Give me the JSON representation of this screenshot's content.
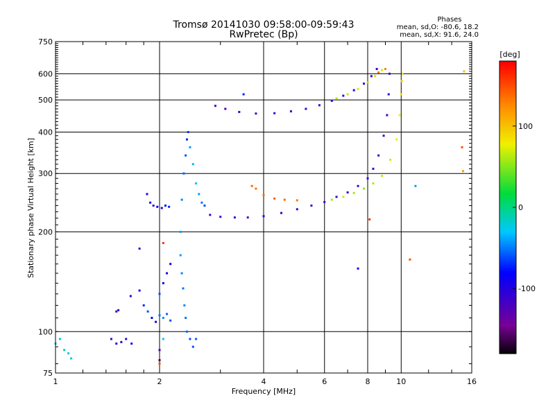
{
  "chart_data": {
    "type": "scatter",
    "title": "Tromsø 20141030 09:58:00-09:59:43",
    "subtitle": "RwPretec (Bp)",
    "xlabel": "Frequency [MHz]",
    "ylabel": "Stationary phase Virtual Height [km]",
    "x_scale": "log",
    "y_scale": "log",
    "xlim": [
      1,
      16
    ],
    "ylim": [
      75,
      750
    ],
    "x_ticks": [
      1,
      2,
      4,
      6,
      8,
      10,
      16
    ],
    "y_ticks": [
      75,
      100,
      200,
      300,
      400,
      500,
      600,
      750
    ],
    "x_tick_labels": [
      "1",
      "2",
      "4",
      "6",
      "8",
      "10",
      "16"
    ],
    "y_tick_labels": [
      "75",
      "100",
      "200",
      "300",
      "400",
      "500",
      "600",
      "750"
    ],
    "grid": true,
    "annotation": {
      "heading": "Phases",
      "line1": "mean, sd,O: -80.6, 18.2",
      "line2": "mean, sd,X:  91.6, 24.0"
    },
    "colorbar": {
      "label": "[deg]",
      "range": [
        -180,
        180
      ],
      "ticks": [
        100,
        0,
        -100
      ],
      "tick_labels": [
        "100",
        "0",
        "-100"
      ]
    },
    "series": [
      {
        "comment_free": true,
        "points": [
          [
            1.0,
            92,
            -20
          ],
          [
            1.03,
            95,
            -15
          ],
          [
            1.06,
            88,
            -10
          ],
          [
            1.09,
            86,
            -25
          ],
          [
            1.11,
            83,
            -20
          ],
          [
            1.45,
            95,
            -110
          ],
          [
            1.5,
            92,
            -105
          ],
          [
            1.55,
            93,
            -100
          ],
          [
            1.6,
            95,
            -105
          ],
          [
            1.66,
            92,
            -95
          ],
          [
            1.5,
            115,
            -110
          ],
          [
            1.52,
            116,
            -105
          ],
          [
            1.65,
            128,
            -100
          ],
          [
            1.75,
            133,
            -95
          ],
          [
            1.8,
            120,
            -70
          ],
          [
            1.85,
            115,
            -60
          ],
          [
            1.9,
            110,
            -80
          ],
          [
            1.95,
            107,
            -90
          ],
          [
            2.0,
            112,
            -50
          ],
          [
            2.05,
            110,
            -45
          ],
          [
            2.1,
            113,
            -55
          ],
          [
            2.15,
            108,
            -60
          ],
          [
            2.0,
            130,
            -60
          ],
          [
            2.05,
            140,
            -80
          ],
          [
            2.1,
            150,
            -90
          ],
          [
            2.15,
            160,
            -85
          ],
          [
            2.0,
            82,
            -160
          ],
          [
            2.0,
            80,
            150
          ],
          [
            2.05,
            95,
            -20
          ],
          [
            1.84,
            260,
            -95
          ],
          [
            1.88,
            245,
            -90
          ],
          [
            1.92,
            240,
            -100
          ],
          [
            1.97,
            238,
            -85
          ],
          [
            2.03,
            236,
            -90
          ],
          [
            2.08,
            240,
            -80
          ],
          [
            2.13,
            238,
            -70
          ],
          [
            2.3,
            200,
            -40
          ],
          [
            2.32,
            250,
            -45
          ],
          [
            2.35,
            300,
            -55
          ],
          [
            2.38,
            340,
            -60
          ],
          [
            2.4,
            380,
            -70
          ],
          [
            2.42,
            400,
            -65
          ],
          [
            2.45,
            360,
            -40
          ],
          [
            2.5,
            320,
            -35
          ],
          [
            2.55,
            280,
            -30
          ],
          [
            2.6,
            260,
            -40
          ],
          [
            2.65,
            245,
            -50
          ],
          [
            2.7,
            240,
            -60
          ],
          [
            2.3,
            170,
            -40
          ],
          [
            2.32,
            150,
            -45
          ],
          [
            2.34,
            135,
            -50
          ],
          [
            2.36,
            120,
            -45
          ],
          [
            2.38,
            110,
            -50
          ],
          [
            2.4,
            100,
            -55
          ],
          [
            2.45,
            95,
            -60
          ],
          [
            2.5,
            90,
            -60
          ],
          [
            2.8,
            225,
            -110
          ],
          [
            3.0,
            222,
            -115
          ],
          [
            3.3,
            221,
            -110
          ],
          [
            3.6,
            221,
            -115
          ],
          [
            4.0,
            223,
            -110
          ],
          [
            4.5,
            228,
            -115
          ],
          [
            5.0,
            234,
            -115
          ],
          [
            5.5,
            240,
            -110
          ],
          [
            6.0,
            246,
            -115
          ],
          [
            6.5,
            255,
            -110
          ],
          [
            7.0,
            263,
            -105
          ],
          [
            7.5,
            275,
            -110
          ],
          [
            8.0,
            290,
            -105
          ],
          [
            8.3,
            310,
            -110
          ],
          [
            8.6,
            340,
            -115
          ],
          [
            8.9,
            390,
            -110
          ],
          [
            9.1,
            450,
            -115
          ],
          [
            9.2,
            520,
            -110
          ],
          [
            9.25,
            600,
            -105
          ],
          [
            3.7,
            275,
            140
          ],
          [
            3.8,
            270,
            135
          ],
          [
            4.0,
            258,
            140
          ],
          [
            4.3,
            252,
            145
          ],
          [
            4.6,
            250,
            140
          ],
          [
            5.0,
            249,
            135
          ],
          [
            6.3,
            250,
            60
          ],
          [
            6.8,
            255,
            70
          ],
          [
            7.3,
            262,
            60
          ],
          [
            7.8,
            270,
            55
          ],
          [
            8.3,
            280,
            60
          ],
          [
            8.8,
            295,
            65
          ],
          [
            9.3,
            330,
            70
          ],
          [
            9.7,
            380,
            75
          ],
          [
            9.9,
            450,
            80
          ],
          [
            10.0,
            520,
            85
          ],
          [
            10.05,
            570,
            90
          ],
          [
            10.1,
            600,
            95
          ],
          [
            2.9,
            480,
            -115
          ],
          [
            3.1,
            470,
            -115
          ],
          [
            3.4,
            460,
            -110
          ],
          [
            3.8,
            455,
            -115
          ],
          [
            4.3,
            456,
            -110
          ],
          [
            4.8,
            462,
            -115
          ],
          [
            5.3,
            470,
            -110
          ],
          [
            5.8,
            482,
            -105
          ],
          [
            6.3,
            497,
            -110
          ],
          [
            6.8,
            515,
            -100
          ],
          [
            7.3,
            535,
            -105
          ],
          [
            7.8,
            560,
            -100
          ],
          [
            8.2,
            590,
            -110
          ],
          [
            8.5,
            620,
            -105
          ],
          [
            6.5,
            505,
            60
          ],
          [
            7.0,
            520,
            65
          ],
          [
            7.5,
            540,
            70
          ],
          [
            8.0,
            565,
            60
          ],
          [
            8.4,
            590,
            65
          ],
          [
            8.8,
            615,
            70
          ],
          [
            8.6,
            605,
            140
          ],
          [
            9.0,
            620,
            130
          ],
          [
            3.5,
            520,
            -70
          ],
          [
            10.6,
            165,
            150
          ],
          [
            11.0,
            275,
            -40
          ],
          [
            15.2,
            610,
            100
          ],
          [
            15.0,
            360,
            150
          ],
          [
            15.1,
            305,
            120
          ],
          [
            7.5,
            155,
            -90
          ],
          [
            8.1,
            218,
            160
          ],
          [
            1.75,
            178,
            -110
          ],
          [
            2.05,
            185,
            160
          ],
          [
            2.55,
            95,
            -55
          ],
          [
            2.0,
            88,
            -115
          ]
        ]
      }
    ]
  }
}
